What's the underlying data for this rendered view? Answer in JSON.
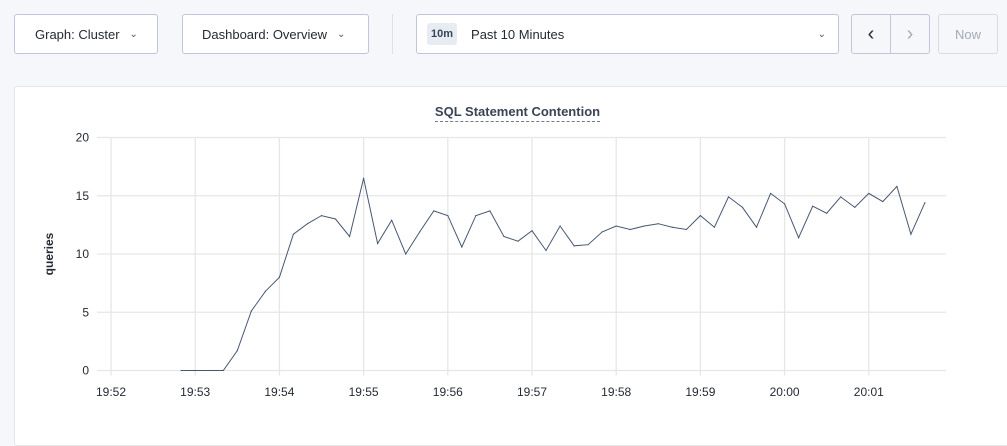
{
  "toolbar": {
    "graph_label": "Graph: Cluster",
    "dashboard_label": "Dashboard: Overview",
    "time_badge": "10m",
    "time_label": "Past 10 Minutes",
    "now_label": "Now",
    "icons": {
      "dropdown": "chevron-down-icon",
      "prev": "chevron-left-icon",
      "next": "chevron-right-icon"
    }
  },
  "chart_data": {
    "type": "line",
    "title": "SQL Statement Contention",
    "xlabel": "",
    "ylabel": "queries",
    "ylim": [
      0,
      20
    ],
    "yticks": [
      0,
      5,
      10,
      15,
      20
    ],
    "xticks": [
      "19:52",
      "19:53",
      "19:54",
      "19:55",
      "19:56",
      "19:57",
      "19:58",
      "19:59",
      "20:00",
      "20:01"
    ],
    "grid": true,
    "line_color": "#475872",
    "x": [
      "19:52:50",
      "19:53:00",
      "19:53:10",
      "19:53:20",
      "19:53:30",
      "19:53:40",
      "19:53:50",
      "19:54:00",
      "19:54:10",
      "19:54:20",
      "19:54:30",
      "19:54:40",
      "19:54:50",
      "19:55:00",
      "19:55:10",
      "19:55:20",
      "19:55:30",
      "19:55:40",
      "19:55:50",
      "19:56:00",
      "19:56:10",
      "19:56:20",
      "19:56:30",
      "19:56:40",
      "19:56:50",
      "19:57:00",
      "19:57:10",
      "19:57:20",
      "19:57:30",
      "19:57:40",
      "19:57:50",
      "19:58:00",
      "19:58:10",
      "19:58:20",
      "19:58:30",
      "19:58:40",
      "19:58:50",
      "19:59:00",
      "19:59:10",
      "19:59:20",
      "19:59:30",
      "19:59:40",
      "19:59:50",
      "20:00:00",
      "20:00:10",
      "20:00:20",
      "20:00:30",
      "20:00:40",
      "20:00:50",
      "20:01:00",
      "20:01:10",
      "20:01:20",
      "20:01:30",
      "20:01:40"
    ],
    "values": [
      0,
      0,
      0,
      0,
      1.7,
      5.1,
      6.8,
      8.0,
      11.7,
      12.6,
      13.3,
      13.0,
      11.5,
      16.5,
      10.9,
      12.9,
      10.0,
      11.9,
      13.7,
      13.3,
      10.6,
      13.3,
      13.7,
      11.5,
      11.1,
      12.0,
      10.3,
      12.4,
      10.7,
      10.8,
      11.9,
      12.4,
      12.1,
      12.4,
      12.6,
      12.3,
      12.1,
      13.3,
      12.3,
      14.9,
      14.0,
      12.3,
      15.2,
      14.3,
      11.4,
      14.1,
      13.5,
      14.9,
      14.0,
      15.2,
      14.5,
      15.8,
      11.7,
      14.4
    ]
  }
}
